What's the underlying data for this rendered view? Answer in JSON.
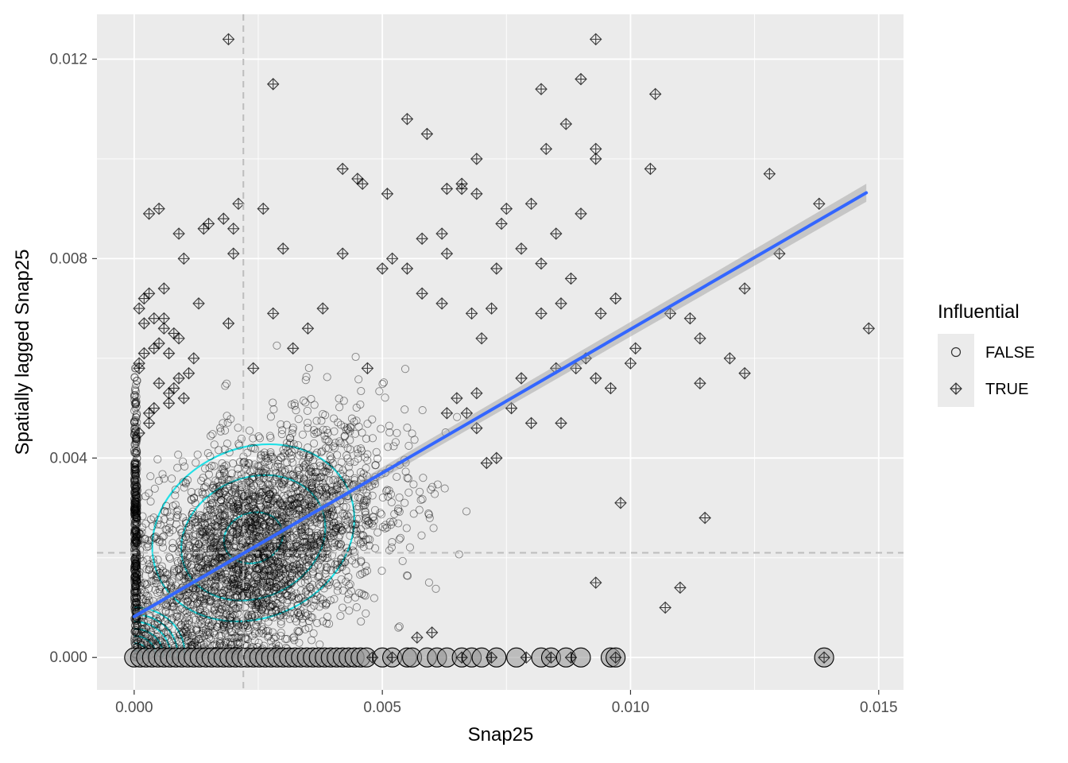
{
  "chart_data": {
    "type": "scatter",
    "xlabel": "Snap25",
    "ylabel": "Spatially lagged Snap25",
    "xlim": [
      -0.00075,
      0.0155
    ],
    "ylim": [
      -0.00065,
      0.0129
    ],
    "x_ticks": [
      {
        "value": 0.0,
        "label": "0.000"
      },
      {
        "value": 0.005,
        "label": "0.005"
      },
      {
        "value": 0.01,
        "label": "0.010"
      },
      {
        "value": 0.015,
        "label": "0.015"
      }
    ],
    "y_ticks": [
      {
        "value": 0.0,
        "label": "0.000"
      },
      {
        "value": 0.004,
        "label": "0.004"
      },
      {
        "value": 0.008,
        "label": "0.008"
      },
      {
        "value": 0.012,
        "label": "0.012"
      }
    ],
    "grid": true,
    "legend": {
      "title": "Influential",
      "placement": "right",
      "entries": [
        {
          "label": "FALSE",
          "shape": "circle"
        },
        {
          "label": "TRUE",
          "shape": "crossed-diamond"
        }
      ]
    },
    "mean_lines": {
      "x": 0.0022,
      "y": 0.0021
    },
    "regression": {
      "x": [
        0.0,
        0.01475
      ],
      "y": [
        0.00082,
        0.00932
      ],
      "band_halfwidth": [
        8e-05,
        0.00018
      ]
    },
    "series": [
      {
        "name": "TRUE",
        "x": [
          0.0019,
          0.0093,
          0.0028,
          0.009,
          0.0082,
          0.0105,
          0.0055,
          0.0059,
          0.0087,
          0.0083,
          0.0093,
          0.0069,
          0.0042,
          0.0093,
          0.0066,
          0.0104,
          0.0066,
          0.0046,
          0.0051,
          0.0069,
          0.0063,
          0.009,
          0.0128,
          0.0148,
          0.0114,
          0.0101,
          0.0082,
          0.0089,
          0.0114,
          0.013,
          0.0123,
          0.0138,
          0.012,
          0.0112,
          0.008,
          0.0075,
          0.0062,
          0.0108,
          0.0078,
          0.0085,
          0.0088,
          0.0097,
          0.0123,
          0.0115,
          0.0071,
          0.0063,
          0.0093,
          0.0098,
          0.0073,
          0.006,
          0.0057,
          0.0026,
          0.0021,
          0.002,
          0.0003,
          0.0005,
          0.0009,
          0.001,
          0.0014,
          0.0018,
          0.0015,
          0.002,
          0.0019,
          0.0024,
          0.0028,
          0.0032,
          0.0038,
          0.0042,
          0.003,
          0.0035,
          0.0045,
          0.0052,
          0.0058,
          0.0063,
          0.0074,
          0.0082,
          0.0073,
          0.0086,
          0.0068,
          0.0094,
          0.0091,
          0.0096,
          0.011,
          0.0107,
          0.01,
          0.0078,
          0.0069,
          0.0067,
          0.0086,
          0.0093,
          0.007,
          0.0072,
          0.0069,
          0.0065,
          0.0076,
          0.0085,
          0.0055,
          0.0058,
          0.0062,
          0.005,
          0.0047,
          0.008,
          0.0006,
          0.0002,
          0.0008,
          0.0012,
          0.0004,
          0.0001,
          0.0003,
          0.0006,
          0.0009,
          0.0002,
          0.0005,
          0.0007,
          0.0001,
          0.0004,
          0.001,
          0.0007,
          0.0011,
          0.0003,
          0.0008,
          0.0002,
          0.0005,
          0.0001,
          0.0006,
          0.0004,
          0.0009,
          0.0003,
          0.0007,
          0.0001,
          0.0013,
          0.0139,
          0.0097,
          0.0072,
          0.0088,
          0.0084,
          0.0079,
          0.0066,
          0.0048,
          0.0052
        ],
        "y": [
          0.0124,
          0.0124,
          0.0115,
          0.0116,
          0.0114,
          0.0113,
          0.0108,
          0.0105,
          0.0107,
          0.0102,
          0.0102,
          0.01,
          0.0098,
          0.01,
          0.0094,
          0.0098,
          0.0095,
          0.0095,
          0.0093,
          0.0093,
          0.0094,
          0.0089,
          0.0097,
          0.0066,
          0.0064,
          0.0062,
          0.0069,
          0.0058,
          0.0055,
          0.0081,
          0.0057,
          0.0091,
          0.006,
          0.0068,
          0.0091,
          0.009,
          0.0085,
          0.0069,
          0.0082,
          0.0085,
          0.0076,
          0.0072,
          0.0074,
          0.0028,
          0.0039,
          0.0049,
          0.0015,
          0.0031,
          0.004,
          0.0005,
          0.0004,
          0.009,
          0.0091,
          0.0086,
          0.0089,
          0.009,
          0.0085,
          0.008,
          0.0086,
          0.0088,
          0.0087,
          0.0081,
          0.0067,
          0.0058,
          0.0069,
          0.0062,
          0.007,
          0.0081,
          0.0082,
          0.0066,
          0.0096,
          0.008,
          0.0084,
          0.0081,
          0.0087,
          0.0079,
          0.0078,
          0.0071,
          0.0069,
          0.0069,
          0.006,
          0.0054,
          0.0014,
          0.001,
          0.0059,
          0.0056,
          0.0053,
          0.0049,
          0.0047,
          0.0056,
          0.0064,
          0.007,
          0.0046,
          0.0052,
          0.005,
          0.0058,
          0.0078,
          0.0073,
          0.0071,
          0.0078,
          0.0058,
          0.0047,
          0.0074,
          0.0072,
          0.0065,
          0.006,
          0.0068,
          0.007,
          0.0073,
          0.0068,
          0.0064,
          0.0061,
          0.0055,
          0.0051,
          0.0058,
          0.005,
          0.0052,
          0.0061,
          0.0057,
          0.0049,
          0.0054,
          0.0067,
          0.0063,
          0.0059,
          0.0066,
          0.0062,
          0.0056,
          0.0047,
          0.0053,
          0.0045,
          0.0071,
          0.0,
          0.0,
          0.0,
          0.0,
          0.0,
          0.0,
          0.0,
          0.0,
          0.0
        ]
      },
      {
        "name": "FALSE",
        "generator": "dense cloud of ~4000 points centred near (0.0025, 0.0025) with many points on x=0 and y=0"
      }
    ]
  }
}
